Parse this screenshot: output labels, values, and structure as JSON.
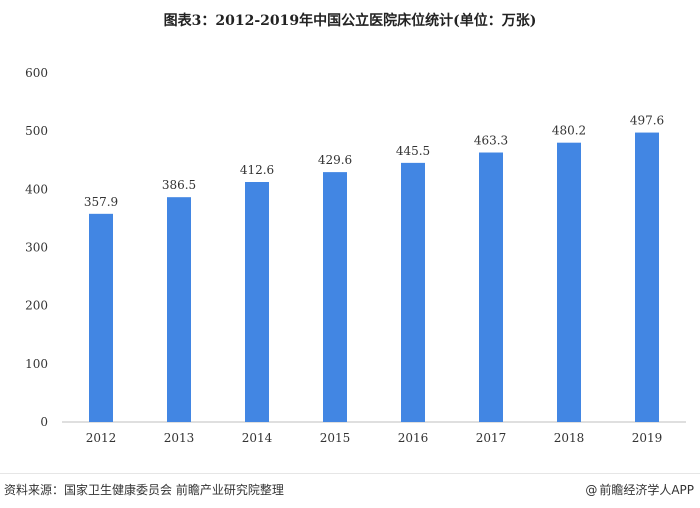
{
  "title": "图表3：2012-2019年中国公立医院床位统计(单位：万张)",
  "source_text": "资料来源：国家卫生健康委员会 前瞻产业研究院整理",
  "brand": {
    "icon": "at-sign-icon",
    "icon_glyph": "@",
    "label": "前瞻经济学人APP"
  },
  "colors": {
    "bar": "#4286E3",
    "axis": "#bfbfbf",
    "text": "#333333"
  },
  "chart_data": {
    "type": "bar",
    "title": "图表3：2012-2019年中国公立医院床位统计(单位：万张)",
    "xlabel": "",
    "ylabel": "",
    "categories": [
      "2012",
      "2013",
      "2014",
      "2015",
      "2016",
      "2017",
      "2018",
      "2019"
    ],
    "values": [
      357.9,
      386.5,
      412.6,
      429.6,
      445.5,
      463.3,
      480.2,
      497.6
    ],
    "value_labels": [
      "357.9",
      "386.5",
      "412.6",
      "429.6",
      "445.5",
      "463.3",
      "480.2",
      "497.6"
    ],
    "yticks": [
      "0",
      "100",
      "200",
      "300",
      "400",
      "500",
      "600"
    ],
    "ylim": [
      0,
      600
    ],
    "grid": false,
    "legend": "none"
  }
}
